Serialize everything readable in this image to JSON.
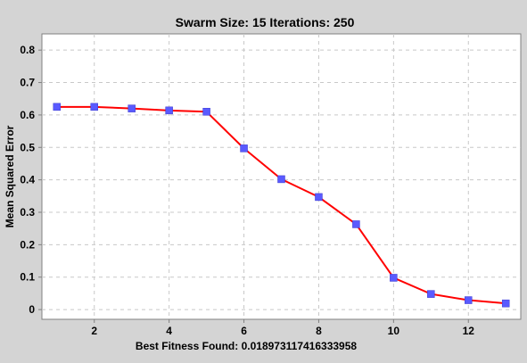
{
  "chart_data": {
    "type": "line",
    "title": "Swarm Size: 15 Iterations: 250",
    "xlabel": "Best Fitness Found: 0.018973117416333958",
    "ylabel": "Mean Squared Error",
    "x": [
      1,
      2,
      3,
      4,
      5,
      6,
      7,
      8,
      9,
      10,
      11,
      12,
      13
    ],
    "series": [
      {
        "values": [
          0.625,
          0.625,
          0.62,
          0.614,
          0.61,
          0.497,
          0.402,
          0.347,
          0.263,
          0.098,
          0.048,
          0.029,
          0.019
        ]
      }
    ],
    "xlim": [
      0.6,
      13.4
    ],
    "ylim": [
      -0.03,
      0.85
    ],
    "xticks": [
      2,
      4,
      6,
      8,
      10,
      12
    ],
    "xtick_labels": [
      "2",
      "4",
      "6",
      "8",
      "10",
      "12"
    ],
    "yticks": [
      0,
      0.1,
      0.2,
      0.3,
      0.4,
      0.5,
      0.6,
      0.7,
      0.8
    ],
    "ytick_labels": [
      "0",
      "0.1",
      "0.2",
      "0.3",
      "0.4",
      "0.5",
      "0.6",
      "0.7",
      "0.8"
    ],
    "grid": true,
    "colors": {
      "line": "#ff0000",
      "marker": "#5a5aff",
      "grid": "#c8c8c8",
      "plot_background": "#ffffff",
      "page_background": "#d4d4d4"
    }
  }
}
